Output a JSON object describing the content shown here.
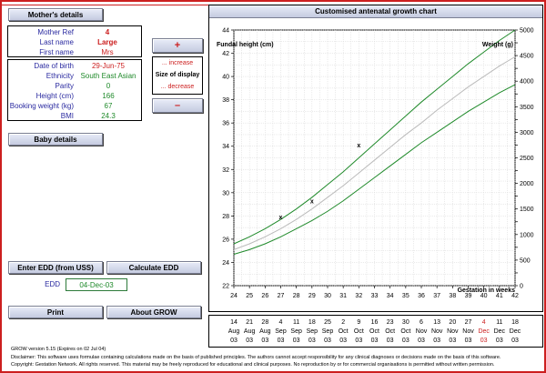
{
  "buttons": {
    "mothers_details": "Mother's details",
    "baby_details": "Baby details",
    "enter_edd": "Enter EDD (from USS)",
    "calculate_edd": "Calculate EDD",
    "print": "Print",
    "about": "About GROW",
    "increase_symbol": "+",
    "decrease_symbol": "–"
  },
  "mother": {
    "fields": [
      {
        "label": "Mother Ref",
        "value": "4"
      },
      {
        "label": "Last name",
        "value": "Large"
      },
      {
        "label": "First name",
        "value": "Mrs"
      }
    ],
    "details": [
      {
        "label": "Date of birth",
        "value": "29-Jun-75"
      },
      {
        "label": "Ethnicity",
        "value": "South East Asian"
      },
      {
        "label": "Parity",
        "value": "0"
      },
      {
        "label": "Height (cm)",
        "value": "166"
      },
      {
        "label": "Booking weight (kg)",
        "value": "67"
      },
      {
        "label": "BMI",
        "value": "24.3"
      }
    ]
  },
  "size_display": {
    "increase": "... increase",
    "label": "Size of display",
    "decrease": "... decrease"
  },
  "edd": {
    "label": "EDD",
    "value": "04-Dec-03"
  },
  "footer": {
    "version": "GROW version 5.15 (Expires on 02 Jul 04)",
    "disclaimer": "Disclaimer: This software uses formulae containing calculations made on the basis of published principles. The authors cannot accept responsibility for any clinical diagnoses or decisions made on the basis of this software.",
    "copyright": "Copyright: Gestation Network. All rights reserved. This material may be freely reproduced for educational and clinical purposes. No reproduction by or for commercial organisations is permitted without written permission."
  },
  "colors": {
    "accent_red": "#cc1f1f",
    "green_line": "#1f8a2a",
    "median_line": "#bbbbbb"
  },
  "chart_data": {
    "type": "line",
    "title": "Customised antenatal growth chart",
    "ylabel": "Fundal height (cm)",
    "y2label": "Weight (g)",
    "xlabel": "Gestation in weeks",
    "xlim": [
      24,
      42
    ],
    "ylim": [
      22,
      44
    ],
    "y2lim": [
      0,
      5000
    ],
    "x_ticks": [
      24,
      25,
      26,
      27,
      28,
      29,
      30,
      31,
      32,
      33,
      34,
      35,
      36,
      37,
      38,
      39,
      40,
      41,
      42
    ],
    "y_ticks": [
      22,
      24,
      26,
      28,
      30,
      32,
      34,
      36,
      38,
      40,
      42,
      44
    ],
    "y2_ticks": [
      0,
      250,
      500,
      750,
      1000,
      1250,
      1500,
      1750,
      2000,
      2250,
      2500,
      2750,
      3000,
      3250,
      3500,
      3750,
      4000,
      4250,
      4500,
      4750,
      5000
    ],
    "y2_tick_labels": [
      "0",
      "",
      "500",
      "",
      "1000",
      "",
      "1500",
      "",
      "2000",
      "",
      "2500",
      "",
      "3000",
      "",
      "3500",
      "",
      "4000",
      "",
      "4500",
      "",
      "5000"
    ],
    "grid": true,
    "x": [
      24,
      25,
      26,
      27,
      28,
      29,
      30,
      31,
      32,
      33,
      34,
      35,
      36,
      37,
      38,
      39,
      40,
      41,
      42
    ],
    "series": [
      {
        "values": [
          25.6,
          26.2,
          26.9,
          27.7,
          28.6,
          29.6,
          30.7,
          31.8,
          33.0,
          34.2,
          35.4,
          36.6,
          37.8,
          38.9,
          40.0,
          41.1,
          42.1,
          43.1,
          44.0
        ]
      },
      {
        "values": [
          25.1,
          25.6,
          26.2,
          26.9,
          27.7,
          28.6,
          29.6,
          30.6,
          31.7,
          32.8,
          33.9,
          35.0,
          36.0,
          37.1,
          38.1,
          39.1,
          40.0,
          40.9,
          41.7
        ]
      },
      {
        "values": [
          24.7,
          25.1,
          25.6,
          26.2,
          26.9,
          27.6,
          28.4,
          29.3,
          30.3,
          31.3,
          32.3,
          33.3,
          34.3,
          35.2,
          36.1,
          37.0,
          37.8,
          38.6,
          39.3
        ]
      }
    ],
    "points": [
      {
        "x": 27,
        "y": 27.9
      },
      {
        "x": 29,
        "y": 29.3
      },
      {
        "x": 32,
        "y": 34.1
      }
    ],
    "marker": "x"
  },
  "date_axis": [
    {
      "day": "14",
      "month": "Aug",
      "year": "03"
    },
    {
      "day": "21",
      "month": "Aug",
      "year": "03"
    },
    {
      "day": "28",
      "month": "Aug",
      "year": "03"
    },
    {
      "day": "4",
      "month": "Sep",
      "year": "03"
    },
    {
      "day": "11",
      "month": "Sep",
      "year": "03"
    },
    {
      "day": "18",
      "month": "Sep",
      "year": "03"
    },
    {
      "day": "25",
      "month": "Sep",
      "year": "03"
    },
    {
      "day": "2",
      "month": "Oct",
      "year": "03"
    },
    {
      "day": "9",
      "month": "Oct",
      "year": "03"
    },
    {
      "day": "16",
      "month": "Oct",
      "year": "03"
    },
    {
      "day": "23",
      "month": "Oct",
      "year": "03"
    },
    {
      "day": "30",
      "month": "Oct",
      "year": "03"
    },
    {
      "day": "6",
      "month": "Nov",
      "year": "03"
    },
    {
      "day": "13",
      "month": "Nov",
      "year": "03"
    },
    {
      "day": "20",
      "month": "Nov",
      "year": "03"
    },
    {
      "day": "27",
      "month": "Nov",
      "year": "03"
    },
    {
      "day": "4",
      "month": "Dec",
      "year": "03",
      "highlight": true
    },
    {
      "day": "11",
      "month": "Dec",
      "year": "03"
    },
    {
      "day": "18",
      "month": "Dec",
      "year": "03"
    }
  ]
}
